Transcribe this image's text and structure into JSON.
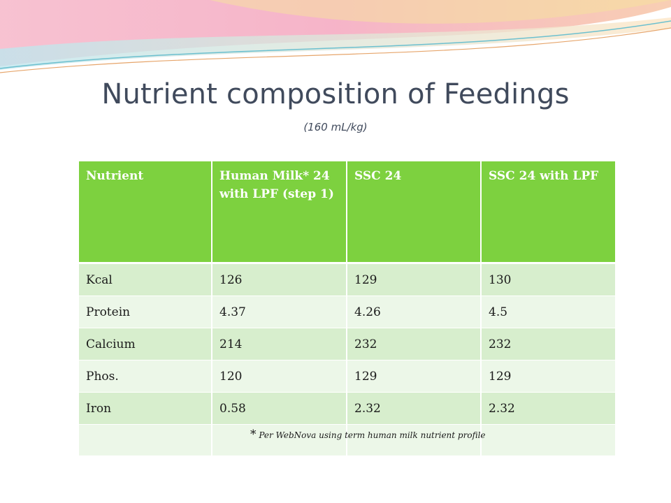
{
  "slide": {
    "title": "Nutrient composition of Feedings",
    "subtitle": "(160 mL/kg)"
  },
  "table": {
    "headers": [
      "Nutrient",
      "Human Milk* 24 with LPF (step 1)",
      "SSC 24",
      "SSC 24 with LPF"
    ],
    "rows": [
      [
        "Kcal",
        "126",
        "129",
        "130"
      ],
      [
        "Protein",
        "4.37",
        "4.26",
        "4.5"
      ],
      [
        "Calcium",
        "214",
        "232",
        "232"
      ],
      [
        "Phos.",
        "120",
        "129",
        "129"
      ],
      [
        "Iron",
        "0.58",
        "2.32",
        "2.32"
      ]
    ],
    "footnote_star": "*",
    "footnote": "Per WebNova using term human milk nutrient profile"
  },
  "colors": {
    "header_green": "#7dd13f",
    "row_dark": "#d7eecd",
    "row_light": "#ecf7e8",
    "title_text": "#404a5c"
  }
}
